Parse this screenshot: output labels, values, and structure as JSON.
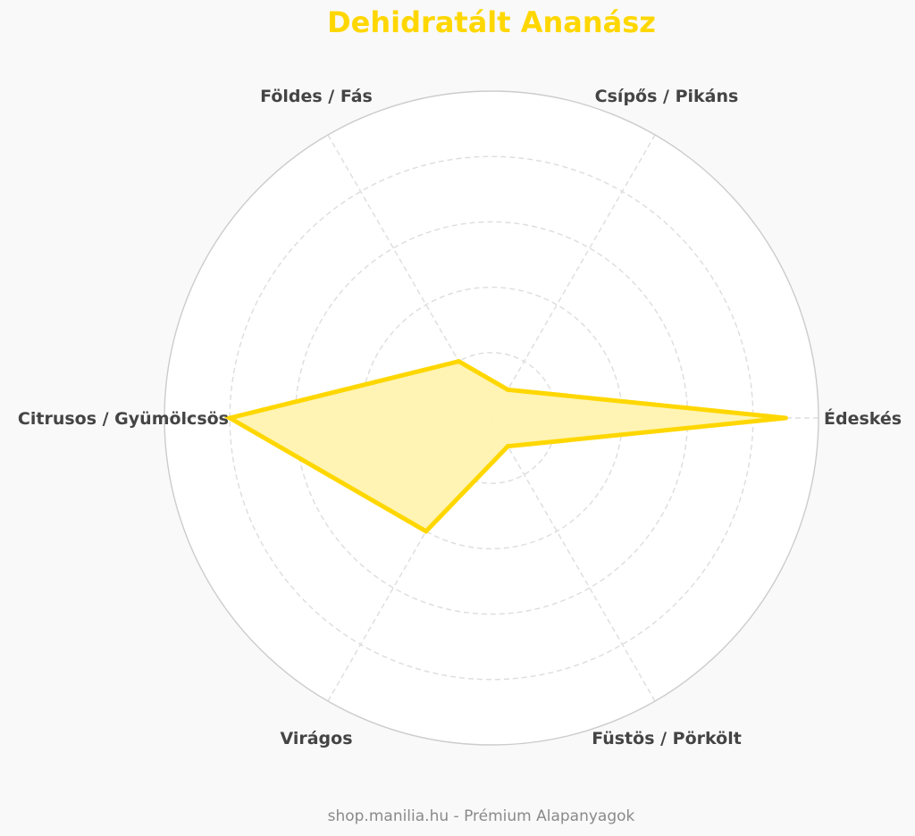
{
  "chart_data": {
    "type": "radar",
    "title": "Dehidratált Ananász",
    "categories": [
      "Édeskés",
      "Csípős / Pikáns",
      "Földes / Fás",
      "Citrusos / Gyümölcsös",
      "Virágos",
      "Füstös / Pörkölt"
    ],
    "series": [
      {
        "values": [
          9,
          1,
          2,
          8,
          4,
          1
        ]
      }
    ],
    "rlim": [
      0,
      10
    ],
    "rticks": [
      2,
      4,
      6,
      8,
      10
    ],
    "grid": true,
    "colors": {
      "line": "#FFD700",
      "fill": "#FFF3B0",
      "grid": "#dddddd",
      "outer": "#cccccc",
      "label": "#444444"
    }
  },
  "footer": "shop.manilia.hu - Prémium Alapanyagok"
}
